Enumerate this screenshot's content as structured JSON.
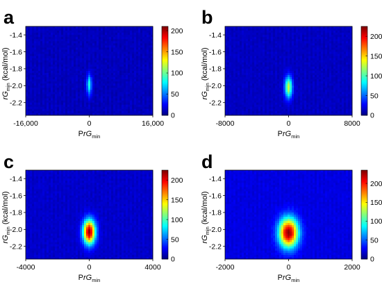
{
  "chart_data": [
    {
      "type": "heatmap",
      "panel_label": "a",
      "xlabel": {
        "pre": "P",
        "italic": "rG",
        "sub": "min"
      },
      "ylabel": {
        "italic": "rG",
        "sub": "min",
        "post": " (kcal/mol)"
      },
      "x_ticks": [
        {
          "value": -16000,
          "label": "-16,000"
        },
        {
          "value": 0,
          "label": "0"
        },
        {
          "value": 16000,
          "label": "16,000"
        }
      ],
      "xlim": [
        -16000,
        16000
      ],
      "y_ticks": [
        {
          "value": -1.4,
          "label": "-1.4"
        },
        {
          "value": -1.6,
          "label": "-1.6"
        },
        {
          "value": -1.8,
          "label": "-1.8"
        },
        {
          "value": -2.0,
          "label": "-2.0"
        },
        {
          "value": -2.2,
          "label": "-2.2"
        }
      ],
      "ylim": [
        -2.35,
        -1.3
      ],
      "colorbar": {
        "min": 0,
        "max": 210,
        "ticks": [
          {
            "value": 0,
            "label": "0"
          },
          {
            "value": 50,
            "label": "50"
          },
          {
            "value": 100,
            "label": "100"
          },
          {
            "value": 150,
            "label": "150"
          },
          {
            "value": 200,
            "label": "200"
          }
        ]
      },
      "hotspot": {
        "x_center": 0,
        "x_sigma": 450,
        "y_center": -1.99,
        "y_sigma": 0.085,
        "peak": 70,
        "background": 12
      }
    },
    {
      "type": "heatmap",
      "panel_label": "b",
      "xlabel": {
        "pre": "P",
        "italic": "rG",
        "sub": "min"
      },
      "ylabel": {
        "italic": "rG",
        "sub": "min",
        "post": " (kcal/mol)"
      },
      "x_ticks": [
        {
          "value": -8000,
          "label": "-8000"
        },
        {
          "value": 0,
          "label": "0"
        },
        {
          "value": 8000,
          "label": "8000"
        }
      ],
      "xlim": [
        -8000,
        8000
      ],
      "y_ticks": [
        {
          "value": -1.4,
          "label": "-1.4"
        },
        {
          "value": -1.6,
          "label": "-1.6"
        },
        {
          "value": -1.8,
          "label": "-1.8"
        },
        {
          "value": -2.0,
          "label": "-2.0"
        },
        {
          "value": -2.2,
          "label": "-2.2"
        }
      ],
      "ylim": [
        -2.35,
        -1.3
      ],
      "colorbar": {
        "min": 0,
        "max": 225,
        "ticks": [
          {
            "value": 0,
            "label": "0"
          },
          {
            "value": 50,
            "label": "50"
          },
          {
            "value": 100,
            "label": "100"
          },
          {
            "value": 150,
            "label": "150"
          },
          {
            "value": 200,
            "label": "200"
          }
        ]
      },
      "hotspot": {
        "x_center": 0,
        "x_sigma": 330,
        "y_center": -2.02,
        "y_sigma": 0.09,
        "peak": 115,
        "background": 14
      }
    },
    {
      "type": "heatmap",
      "panel_label": "c",
      "xlabel": {
        "pre": "P",
        "italic": "rG",
        "sub": "min"
      },
      "ylabel": {
        "italic": "rG",
        "sub": "min",
        "post": " (kcal/mol)"
      },
      "x_ticks": [
        {
          "value": -4000,
          "label": "-4000"
        },
        {
          "value": 0,
          "label": "0"
        },
        {
          "value": 4000,
          "label": "4000"
        }
      ],
      "xlim": [
        -4000,
        4000
      ],
      "y_ticks": [
        {
          "value": -1.4,
          "label": "-1.4"
        },
        {
          "value": -1.6,
          "label": "-1.6"
        },
        {
          "value": -1.8,
          "label": "-1.8"
        },
        {
          "value": -2.0,
          "label": "-2.0"
        },
        {
          "value": -2.2,
          "label": "-2.2"
        }
      ],
      "ylim": [
        -2.35,
        -1.3
      ],
      "colorbar": {
        "min": 0,
        "max": 225,
        "ticks": [
          {
            "value": 0,
            "label": "0"
          },
          {
            "value": 50,
            "label": "50"
          },
          {
            "value": 100,
            "label": "100"
          },
          {
            "value": 150,
            "label": "150"
          },
          {
            "value": 200,
            "label": "200"
          }
        ]
      },
      "hotspot": {
        "x_center": 0,
        "x_sigma": 270,
        "y_center": -2.03,
        "y_sigma": 0.1,
        "peak": 205,
        "background": 16
      }
    },
    {
      "type": "heatmap",
      "panel_label": "d",
      "xlabel": {
        "pre": "P",
        "italic": "rG",
        "sub": "min"
      },
      "ylabel": {
        "italic": "rG",
        "sub": "min",
        "post": " (kcal/mol)"
      },
      "x_ticks": [
        {
          "value": -2000,
          "label": "-2000"
        },
        {
          "value": 0,
          "label": "0"
        },
        {
          "value": 2000,
          "label": "2000"
        }
      ],
      "xlim": [
        -2000,
        2000
      ],
      "y_ticks": [
        {
          "value": -1.4,
          "label": "-1.4"
        },
        {
          "value": -1.6,
          "label": "-1.6"
        },
        {
          "value": -1.8,
          "label": "-1.8"
        },
        {
          "value": -2.0,
          "label": "-2.0"
        },
        {
          "value": -2.2,
          "label": "-2.2"
        }
      ],
      "ylim": [
        -2.35,
        -1.3
      ],
      "colorbar": {
        "min": 0,
        "max": 235,
        "ticks": [
          {
            "value": 0,
            "label": "0"
          },
          {
            "value": 50,
            "label": "50"
          },
          {
            "value": 100,
            "label": "100"
          },
          {
            "value": 150,
            "label": "150"
          },
          {
            "value": 200,
            "label": "200"
          }
        ]
      },
      "hotspot": {
        "x_center": 0,
        "x_sigma": 210,
        "y_center": -2.04,
        "y_sigma": 0.12,
        "peak": 210,
        "background": 22
      }
    }
  ]
}
